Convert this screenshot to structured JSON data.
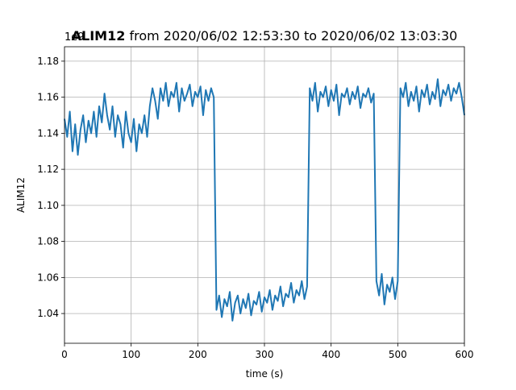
{
  "chart_data": {
    "type": "line",
    "title_name": "ALIM12",
    "title": "from 2020/06/02 12:53:30 to 2020/06/02 13:03:30",
    "y_offset_label": "1e9",
    "xlabel": "time (s)",
    "ylabel": "ALIM12",
    "xlim": [
      0,
      600
    ],
    "ylim": [
      1.0235,
      1.188
    ],
    "xticks": [
      0,
      100,
      200,
      300,
      400,
      500,
      600
    ],
    "yticks": [
      1.04,
      1.06,
      1.08,
      {
        "value": 1.1,
        "label": "1.10"
      },
      1.12,
      1.14,
      1.16,
      1.18
    ],
    "grid": true,
    "x": [
      0,
      4,
      8,
      12,
      16,
      20,
      24,
      28,
      32,
      36,
      40,
      44,
      48,
      52,
      56,
      60,
      64,
      68,
      72,
      76,
      80,
      84,
      88,
      92,
      96,
      100,
      104,
      108,
      112,
      116,
      120,
      124,
      128,
      132,
      136,
      140,
      144,
      148,
      152,
      156,
      160,
      164,
      168,
      172,
      176,
      180,
      184,
      188,
      192,
      196,
      200,
      204,
      208,
      212,
      216,
      220,
      224,
      228,
      232,
      236,
      240,
      244,
      248,
      252,
      256,
      260,
      264,
      268,
      272,
      276,
      280,
      284,
      288,
      292,
      296,
      300,
      304,
      308,
      312,
      316,
      320,
      324,
      328,
      332,
      336,
      340,
      344,
      348,
      352,
      356,
      360,
      364,
      368,
      372,
      376,
      380,
      384,
      388,
      392,
      396,
      400,
      404,
      408,
      412,
      416,
      420,
      424,
      428,
      432,
      436,
      440,
      444,
      448,
      452,
      456,
      460,
      464,
      468,
      472,
      476,
      480,
      484,
      488,
      492,
      496,
      500,
      504,
      508,
      512,
      516,
      520,
      524,
      528,
      532,
      536,
      540,
      544,
      548,
      552,
      556,
      560,
      564,
      568,
      572,
      576,
      580,
      584,
      588,
      592,
      596,
      600
    ],
    "series": [
      {
        "name": "ALIM12",
        "color": "#1f77b4",
        "values": [
          1.148,
          1.138,
          1.152,
          1.13,
          1.145,
          1.128,
          1.142,
          1.15,
          1.135,
          1.147,
          1.14,
          1.152,
          1.138,
          1.155,
          1.146,
          1.162,
          1.15,
          1.142,
          1.155,
          1.138,
          1.15,
          1.145,
          1.132,
          1.152,
          1.14,
          1.135,
          1.148,
          1.13,
          1.145,
          1.14,
          1.15,
          1.138,
          1.155,
          1.165,
          1.158,
          1.148,
          1.165,
          1.158,
          1.168,
          1.155,
          1.163,
          1.16,
          1.168,
          1.152,
          1.165,
          1.158,
          1.162,
          1.167,
          1.155,
          1.163,
          1.16,
          1.166,
          1.15,
          1.164,
          1.158,
          1.165,
          1.16,
          1.042,
          1.05,
          1.038,
          1.048,
          1.044,
          1.052,
          1.036,
          1.046,
          1.05,
          1.04,
          1.048,
          1.043,
          1.051,
          1.039,
          1.047,
          1.045,
          1.052,
          1.041,
          1.049,
          1.046,
          1.053,
          1.042,
          1.05,
          1.047,
          1.055,
          1.044,
          1.051,
          1.049,
          1.057,
          1.046,
          1.053,
          1.05,
          1.058,
          1.048,
          1.055,
          1.165,
          1.158,
          1.168,
          1.152,
          1.163,
          1.16,
          1.166,
          1.155,
          1.164,
          1.158,
          1.167,
          1.15,
          1.162,
          1.16,
          1.165,
          1.156,
          1.163,
          1.159,
          1.166,
          1.154,
          1.162,
          1.16,
          1.165,
          1.157,
          1.162,
          1.058,
          1.05,
          1.062,
          1.045,
          1.056,
          1.052,
          1.06,
          1.048,
          1.058,
          1.165,
          1.16,
          1.168,
          1.155,
          1.163,
          1.158,
          1.166,
          1.152,
          1.164,
          1.16,
          1.167,
          1.156,
          1.163,
          1.159,
          1.17,
          1.155,
          1.164,
          1.161,
          1.167,
          1.158,
          1.165,
          1.162,
          1.168,
          1.16,
          1.15
        ]
      }
    ]
  }
}
